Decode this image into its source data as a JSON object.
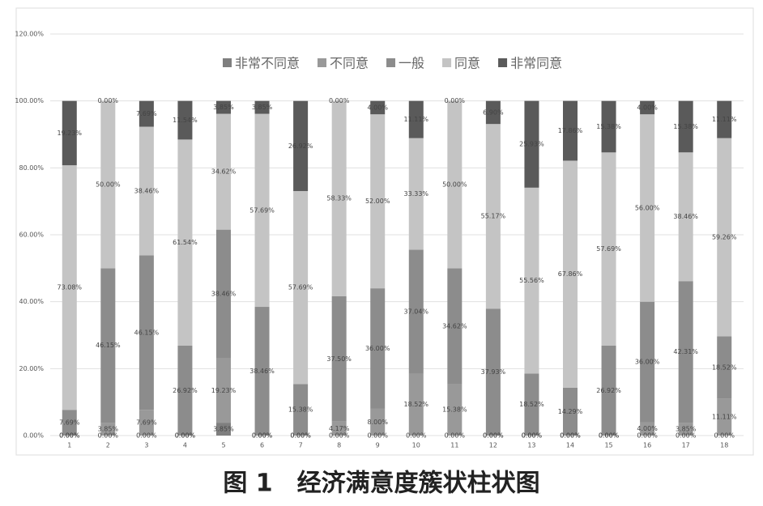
{
  "chart_data": {
    "type": "stacked-bar",
    "caption": "图 1　经济满意度簇状柱状图",
    "categories": [
      "1",
      "2",
      "3",
      "4",
      "5",
      "6",
      "7",
      "8",
      "9",
      "10",
      "11",
      "12",
      "13",
      "14",
      "15",
      "16",
      "17",
      "18"
    ],
    "series": [
      {
        "name": "非常不同意",
        "color": "#7f7f7f",
        "values": [
          0,
          0,
          0,
          0,
          3.85,
          0,
          0,
          0,
          0,
          0,
          0,
          0,
          0,
          0,
          0,
          0,
          0,
          0
        ],
        "value_labels": [
          "0.00%",
          "0.00%",
          "0.00%",
          "0.00%",
          "3.85%",
          "0.00%",
          "0.00%",
          "0.00%",
          "0.00%",
          "0.00%",
          "0.00%",
          "0.00%",
          "0.00%",
          "0.00%",
          "0.00%",
          "0.00%",
          "0.00%",
          "0.00%"
        ]
      },
      {
        "name": "不同意",
        "color": "#999999",
        "values": [
          0,
          3.85,
          7.69,
          0,
          19.23,
          0,
          0,
          4.17,
          8,
          18.52,
          15.38,
          0,
          0,
          0,
          0,
          4,
          3.85,
          11.11
        ],
        "value_labels": [
          "0.00%",
          "3.85%",
          "7.69%",
          "0.00%",
          "19.23%",
          "0.00%",
          "0.00%",
          "4.17%",
          "8.00%",
          "18.52%",
          "15.38%",
          "0.00%",
          "0.00%",
          "0.00%",
          "0.00%",
          "4.00%",
          "3.85%",
          "11.11%"
        ]
      },
      {
        "name": "一般",
        "color": "#8c8c8c",
        "values": [
          7.69,
          46.15,
          46.15,
          26.92,
          38.46,
          38.46,
          15.38,
          37.5,
          36,
          37.04,
          34.62,
          37.93,
          18.52,
          14.29,
          26.92,
          36,
          42.31,
          18.52
        ],
        "value_labels": [
          "7.69%",
          "46.15%",
          "46.15%",
          "26.92%",
          "38.46%",
          "38.46%",
          "15.38%",
          "37.50%",
          "36.00%",
          "37.04%",
          "34.62%",
          "37.93%",
          "18.52%",
          "14.29%",
          "26.92%",
          "36.00%",
          "42.31%",
          "18.52%"
        ]
      },
      {
        "name": "同意",
        "color": "#c4c4c4",
        "values": [
          73.08,
          50,
          38.46,
          61.54,
          34.62,
          57.69,
          57.69,
          58.33,
          52,
          33.33,
          50,
          55.17,
          55.56,
          67.86,
          57.69,
          56,
          38.46,
          59.26
        ],
        "value_labels": [
          "73.08%",
          "50.00%",
          "38.46%",
          "61.54%",
          "34.62%",
          "57.69%",
          "57.69%",
          "58.33%",
          "52.00%",
          "33.33%",
          "50.00%",
          "55.17%",
          "55.56%",
          "67.86%",
          "57.69%",
          "56.00%",
          "38.46%",
          "59.26%"
        ]
      },
      {
        "name": "非常同意",
        "color": "#5a5a5a",
        "values": [
          19.23,
          0,
          7.69,
          11.54,
          3.85,
          3.85,
          26.92,
          0,
          4,
          11.11,
          0,
          6.9,
          25.93,
          17.86,
          15.38,
          4,
          15.38,
          11.11
        ],
        "value_labels": [
          "19.23%",
          "0.00%",
          "7.69%",
          "11.54%",
          "3.85%",
          "3.85%",
          "26.92%",
          "0.00%",
          "4.00%",
          "11.11%",
          "0.00%",
          "6.90%",
          "25.93%",
          "17.86%",
          "15.38%",
          "4.00%",
          "15.38%",
          "11.11%"
        ]
      }
    ],
    "ylim": [
      0,
      120
    ],
    "yticks": [
      {
        "value": 0,
        "label": "0.00%"
      },
      {
        "value": 20,
        "label": "20.00%"
      },
      {
        "value": 40,
        "label": "40.00%"
      },
      {
        "value": 60,
        "label": "60.00%"
      },
      {
        "value": 80,
        "label": "80.00%"
      },
      {
        "value": 100,
        "label": "100.00%"
      },
      {
        "value": 120,
        "label": "120.00%"
      }
    ],
    "grid": true,
    "legend": "top"
  }
}
